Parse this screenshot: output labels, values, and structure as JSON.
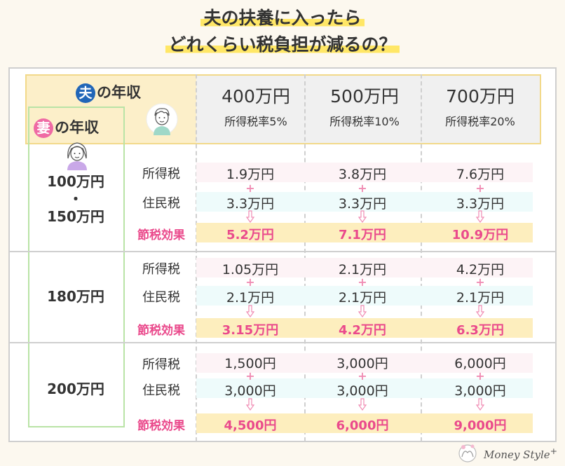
{
  "title": {
    "line1": "夫の扶養に入ったら",
    "line2": "どれくらい税負担が減るの？"
  },
  "header": {
    "husband_badge": "夫",
    "husband_label": "の年収",
    "wife_badge": "妻",
    "wife_label": "の年収",
    "columns": [
      {
        "amount": "400万円",
        "rate": "所得税率5%"
      },
      {
        "amount": "500万円",
        "rate": "所得税率10%"
      },
      {
        "amount": "700万円",
        "rate": "所得税率20%"
      }
    ]
  },
  "row_labels": {
    "income_tax": "所得税",
    "resident_tax": "住民税",
    "effect": "節税効果"
  },
  "groups": [
    {
      "wife_income_lines": [
        "100万円",
        "・",
        "150万円"
      ],
      "income_tax": [
        "1.9万円",
        "3.8万円",
        "7.6万円"
      ],
      "resident_tax": [
        "3.3万円",
        "3.3万円",
        "3.3万円"
      ],
      "effect": [
        "5.2万円",
        "7.1万円",
        "10.9万円"
      ]
    },
    {
      "wife_income_lines": [
        "180万円"
      ],
      "income_tax": [
        "1.05万円",
        "2.1万円",
        "4.2万円"
      ],
      "resident_tax": [
        "2.1万円",
        "2.1万円",
        "2.1万円"
      ],
      "effect": [
        "3.15万円",
        "4.2万円",
        "6.3万円"
      ]
    },
    {
      "wife_income_lines": [
        "200万円"
      ],
      "income_tax": [
        "1,500円",
        "3,000円",
        "6,000円"
      ],
      "resident_tax": [
        "3,000円",
        "3,000円",
        "3,000円"
      ],
      "effect": [
        "4,500円",
        "6,000円",
        "9,000円"
      ]
    }
  ],
  "symbols": {
    "plus": "+"
  },
  "logo": {
    "text": "Money Style",
    "mark": "+"
  },
  "colors": {
    "accent_pink": "#ea4a8c",
    "husband_blue": "#2166b8",
    "highlight_yellow": "#ffe766"
  }
}
